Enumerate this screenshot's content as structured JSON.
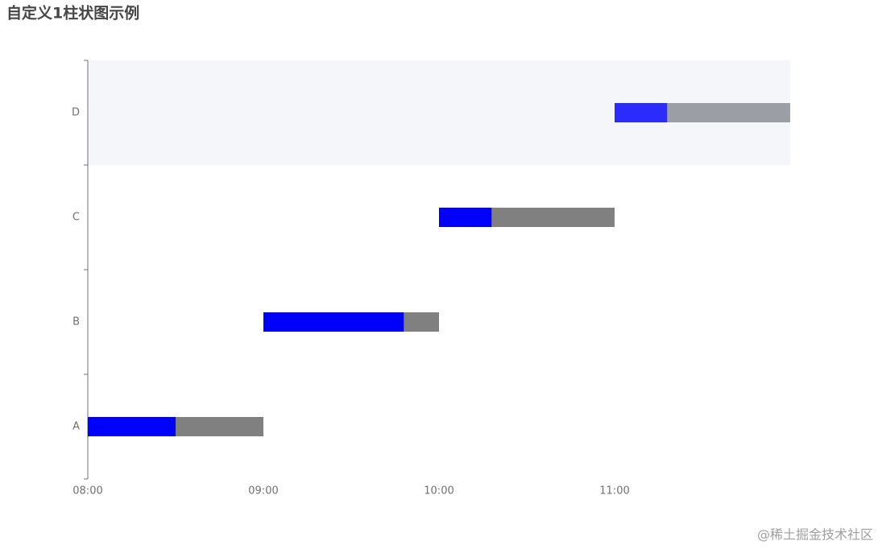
{
  "chart_data": {
    "type": "gantt",
    "title": "自定义1柱状图示例",
    "categories": [
      "A",
      "B",
      "C",
      "D"
    ],
    "start": [
      480,
      540,
      600,
      660
    ],
    "series": [
      {
        "color": "#0000ff",
        "emphasis_color": "#2b2bff",
        "values": [
          30,
          48,
          18,
          18
        ]
      },
      {
        "color": "#808080",
        "emphasis_color": "#9c9ea6",
        "values": [
          30,
          12,
          42,
          42
        ]
      }
    ],
    "highlight_index": 3,
    "xlim": [
      480,
      720
    ],
    "xticks": [
      {
        "value": 480,
        "label": "08:00"
      },
      {
        "value": 540,
        "label": "09:00"
      },
      {
        "value": 600,
        "label": "10:00"
      },
      {
        "value": 660,
        "label": "11:00"
      }
    ],
    "watermark": "@稀土掘金技术社区"
  }
}
